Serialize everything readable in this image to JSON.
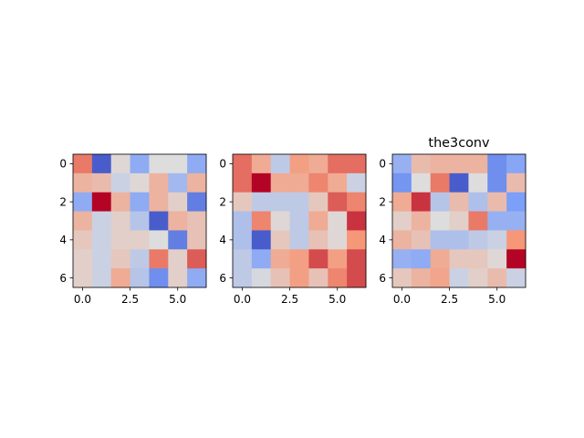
{
  "chart_data": [
    {
      "type": "heatmap",
      "title": "",
      "colormap": "coolwarm",
      "x_ticks": [
        0.0,
        2.5,
        5.0
      ],
      "x_tick_labels": [
        "0.0",
        "2.5",
        "5.0"
      ],
      "y_ticks": [
        0,
        2,
        4,
        6
      ],
      "y_tick_labels": [
        "0",
        "2",
        "4",
        "6"
      ],
      "xlim": [
        -0.5,
        6.5
      ],
      "ylim": [
        6.5,
        -0.5
      ],
      "values": [
        [
          0.8,
          0.05,
          0.52,
          0.3,
          0.5,
          0.5,
          0.3
        ],
        [
          0.65,
          0.62,
          0.45,
          0.52,
          0.65,
          0.35,
          0.65
        ],
        [
          0.3,
          1.0,
          0.65,
          0.3,
          0.65,
          0.55,
          0.15
        ],
        [
          0.65,
          0.45,
          0.55,
          0.4,
          0.05,
          0.65,
          0.6
        ],
        [
          0.58,
          0.45,
          0.55,
          0.55,
          0.5,
          0.15,
          0.6
        ],
        [
          0.55,
          0.45,
          0.58,
          0.42,
          0.8,
          0.55,
          0.85
        ],
        [
          0.55,
          0.45,
          0.68,
          0.4,
          0.2,
          0.55,
          0.3
        ]
      ]
    },
    {
      "type": "heatmap",
      "title": "",
      "colormap": "coolwarm",
      "x_ticks": [
        0.0,
        2.5,
        5.0
      ],
      "x_tick_labels": [
        "0.0",
        "2.5",
        "5.0"
      ],
      "y_ticks": [
        0,
        2,
        4,
        6
      ],
      "y_tick_labels": [
        "0",
        "2",
        "4",
        "6"
      ],
      "xlim": [
        -0.5,
        6.5
      ],
      "ylim": [
        6.5,
        -0.5
      ],
      "values": [
        [
          0.82,
          0.68,
          0.42,
          0.72,
          0.68,
          0.82,
          0.82
        ],
        [
          0.82,
          1.0,
          0.68,
          0.68,
          0.78,
          0.68,
          0.45
        ],
        [
          0.58,
          0.42,
          0.42,
          0.42,
          0.58,
          0.85,
          0.78
        ],
        [
          0.38,
          0.78,
          0.52,
          0.42,
          0.68,
          0.52,
          0.92
        ],
        [
          0.38,
          0.05,
          0.58,
          0.42,
          0.6,
          0.52,
          0.75
        ],
        [
          0.42,
          0.3,
          0.68,
          0.72,
          0.88,
          0.72,
          0.88
        ],
        [
          0.42,
          0.48,
          0.6,
          0.72,
          0.6,
          0.78,
          0.88
        ]
      ]
    },
    {
      "type": "heatmap",
      "title": "the3conv",
      "colormap": "coolwarm",
      "x_ticks": [
        0.0,
        2.5,
        5.0
      ],
      "x_tick_labels": [
        "0.0",
        "2.5",
        "5.0"
      ],
      "y_ticks": [
        0,
        2,
        4,
        6
      ],
      "y_tick_labels": [
        "0",
        "2",
        "4",
        "6"
      ],
      "xlim": [
        -0.5,
        6.5
      ],
      "ylim": [
        6.5,
        -0.5
      ],
      "values": [
        [
          0.32,
          0.62,
          0.65,
          0.65,
          0.65,
          0.2,
          0.28
        ],
        [
          0.22,
          0.5,
          0.8,
          0.05,
          0.5,
          0.2,
          0.62
        ],
        [
          0.68,
          0.92,
          0.4,
          0.62,
          0.38,
          0.62,
          0.25
        ],
        [
          0.55,
          0.65,
          0.5,
          0.55,
          0.8,
          0.32,
          0.32
        ],
        [
          0.65,
          0.6,
          0.38,
          0.38,
          0.42,
          0.45,
          0.75
        ],
        [
          0.32,
          0.3,
          0.68,
          0.58,
          0.58,
          0.52,
          1.0
        ],
        [
          0.58,
          0.65,
          0.7,
          0.45,
          0.55,
          0.62,
          0.45
        ]
      ]
    }
  ]
}
